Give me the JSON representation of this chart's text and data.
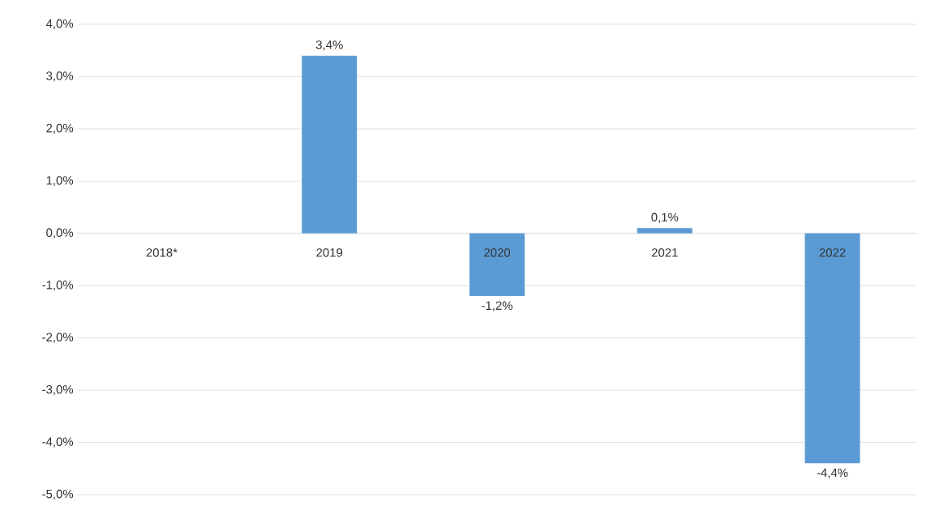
{
  "chart_data": {
    "type": "bar",
    "categories": [
      "2018*",
      "2019",
      "2020",
      "2021",
      "2022"
    ],
    "values": [
      null,
      3.4,
      -1.2,
      0.1,
      -4.4
    ],
    "value_labels": [
      null,
      "3,4%",
      "-1,2%",
      "0,1%",
      "-4,4%"
    ],
    "color": "#5b9bd5",
    "ylim": [
      -5,
      4
    ],
    "yticks": [
      {
        "value": -5,
        "label": "-5,0%"
      },
      {
        "value": -4,
        "label": "-4,0%"
      },
      {
        "value": -3,
        "label": "-3,0%"
      },
      {
        "value": -2,
        "label": "-2,0%"
      },
      {
        "value": -1,
        "label": "-1,0%"
      },
      {
        "value": 0,
        "label": "0,0%"
      },
      {
        "value": 1,
        "label": "1,0%"
      },
      {
        "value": 2,
        "label": "2,0%"
      },
      {
        "value": 3,
        "label": "3,0%"
      },
      {
        "value": 4,
        "label": "4,0%"
      }
    ],
    "grid": "y"
  }
}
